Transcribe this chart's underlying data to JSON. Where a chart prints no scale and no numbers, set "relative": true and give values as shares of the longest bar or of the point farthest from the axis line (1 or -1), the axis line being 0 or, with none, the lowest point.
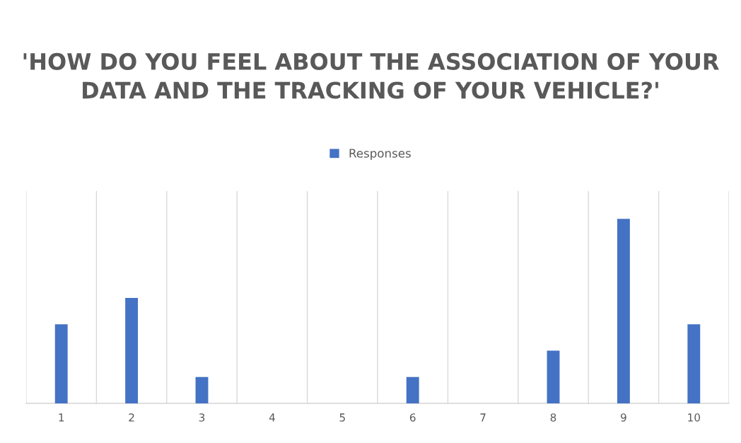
{
  "chart_data": {
    "type": "bar",
    "title": "'HOW DO YOU FEEL ABOUT THE ASSOCIATION OF YOUR DATA AND THE TRACKING OF YOUR VEHICLE?'",
    "categories": [
      "1",
      "2",
      "3",
      "4",
      "5",
      "6",
      "7",
      "8",
      "9",
      "10"
    ],
    "series": [
      {
        "name": "Responses",
        "color": "#4472c4",
        "values": [
          0.4286,
          0.5714,
          0.1429,
          0,
          0,
          0.1429,
          0,
          0.2857,
          1,
          0.4286
        ]
      }
    ],
    "relative": true,
    "grid": "x",
    "legend": "top"
  }
}
